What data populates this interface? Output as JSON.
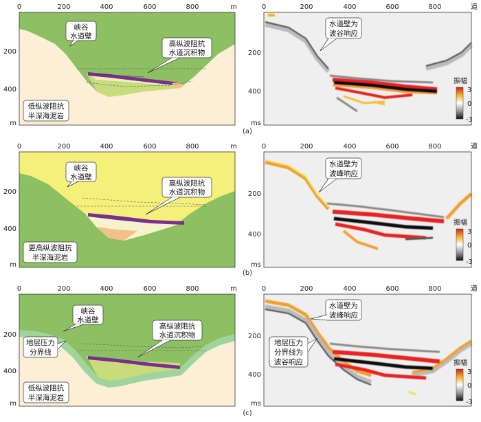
{
  "panels": [
    {
      "caption": "(a)",
      "model": {
        "x_ticks": [
          "0",
          "200",
          "400",
          "600",
          "800"
        ],
        "x_unit": "m",
        "y_ticks": [
          "200",
          "400"
        ],
        "y_unit": "m",
        "labels": {
          "wall": [
            "峡谷",
            "水道壁"
          ],
          "channel": [
            "高纵波阻抗",
            "水道沉积物"
          ],
          "host": [
            "低纵波阻抗",
            "半深海泥岩"
          ]
        }
      },
      "seismic": {
        "x_ticks": [
          "0",
          "200",
          "400",
          "600",
          "800"
        ],
        "x_unit": "道",
        "y_ticks": [
          "200",
          "400"
        ],
        "y_unit": "ms",
        "labels": {
          "wall": [
            "水道壁为",
            "波谷响应"
          ]
        },
        "colorbar": {
          "title": "振幅",
          "ticks": [
            "3",
            "0",
            "-3"
          ]
        }
      }
    },
    {
      "caption": "(b)",
      "model": {
        "x_ticks": [
          "0",
          "200",
          "400",
          "600",
          "800"
        ],
        "x_unit": "m",
        "y_ticks": [
          "200",
          "400"
        ],
        "y_unit": "m",
        "labels": {
          "wall": [
            "峡谷",
            "水道壁"
          ],
          "channel": [
            "高纵波阻抗",
            "水道沉积物"
          ],
          "host": [
            "更高纵波阻抗",
            "半深海泥岩"
          ]
        }
      },
      "seismic": {
        "x_ticks": [
          "0",
          "200",
          "400",
          "600",
          "800"
        ],
        "x_unit": "道",
        "y_ticks": [
          "200",
          "400"
        ],
        "y_unit": "ms",
        "labels": {
          "wall": [
            "水道壁为",
            "波峰响应"
          ]
        },
        "colorbar": {
          "title": "振幅",
          "ticks": [
            "3",
            "0",
            "-3"
          ]
        }
      }
    },
    {
      "caption": "(c)",
      "model": {
        "x_ticks": [
          "0",
          "200",
          "400",
          "600",
          "800"
        ],
        "x_unit": "m",
        "y_ticks": [
          "200",
          "400"
        ],
        "y_unit": "m",
        "labels": {
          "wall": [
            "峡谷",
            "水道壁"
          ],
          "channel": [
            "高纵波阻抗",
            "水道沉积物"
          ],
          "host": [
            "低纵波阻抗",
            "半深海泥岩"
          ],
          "boundary": [
            "地层压力",
            "分界线"
          ]
        }
      },
      "seismic": {
        "x_ticks": [
          "0",
          "200",
          "400",
          "600",
          "800"
        ],
        "x_unit": "道",
        "y_ticks": [
          "200",
          "400"
        ],
        "y_unit": "ms",
        "labels": {
          "wall": [
            "水道壁为",
            "波峰响应"
          ],
          "boundary": [
            "地层压力",
            "分界线为",
            "波谷响应"
          ]
        },
        "colorbar": {
          "title": "振幅",
          "ticks": [
            "3",
            "0",
            "-3"
          ]
        }
      }
    }
  ],
  "colors": {
    "green": "#8dc063",
    "cream": "#fcefd6",
    "yellow": "#f4f07a",
    "light_green": "#c8dc7c",
    "pale": "#f6f3cc",
    "purple": "#7a2f8f",
    "orange": "#f2c08a",
    "boundary_band": "#9fd49f"
  }
}
